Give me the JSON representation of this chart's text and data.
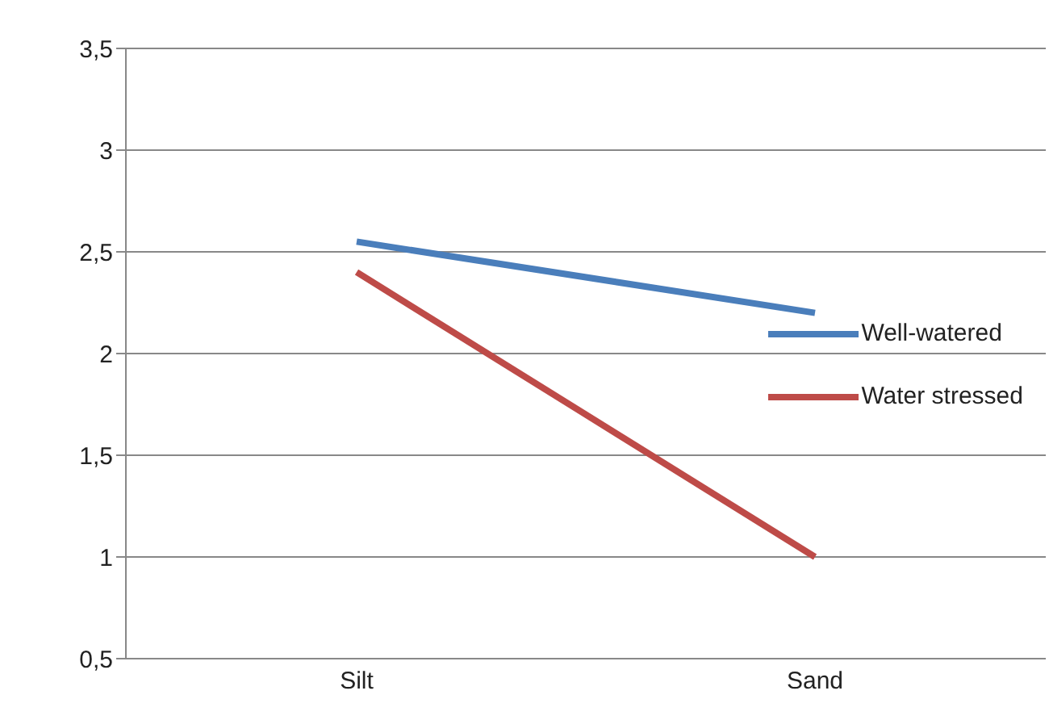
{
  "chart_data": {
    "type": "line",
    "categories": [
      "Silt",
      "Sand"
    ],
    "series": [
      {
        "name": "Well-watered",
        "color": "#4a7ebb",
        "values": [
          2.55,
          2.2
        ]
      },
      {
        "name": "Water stressed",
        "color": "#be4b48",
        "values": [
          2.4,
          1.0
        ]
      }
    ],
    "ylim": [
      0.5,
      3.5
    ],
    "yticks": [
      {
        "value": 0.5,
        "label": "0,5"
      },
      1,
      {
        "value": 1.5,
        "label": "1,5"
      },
      2,
      {
        "value": 2.5,
        "label": "2,5"
      },
      3,
      {
        "value": 3.5,
        "label": "3,5"
      }
    ],
    "grid": "y",
    "legend": "right",
    "marker": "none",
    "line_style": "solid"
  }
}
